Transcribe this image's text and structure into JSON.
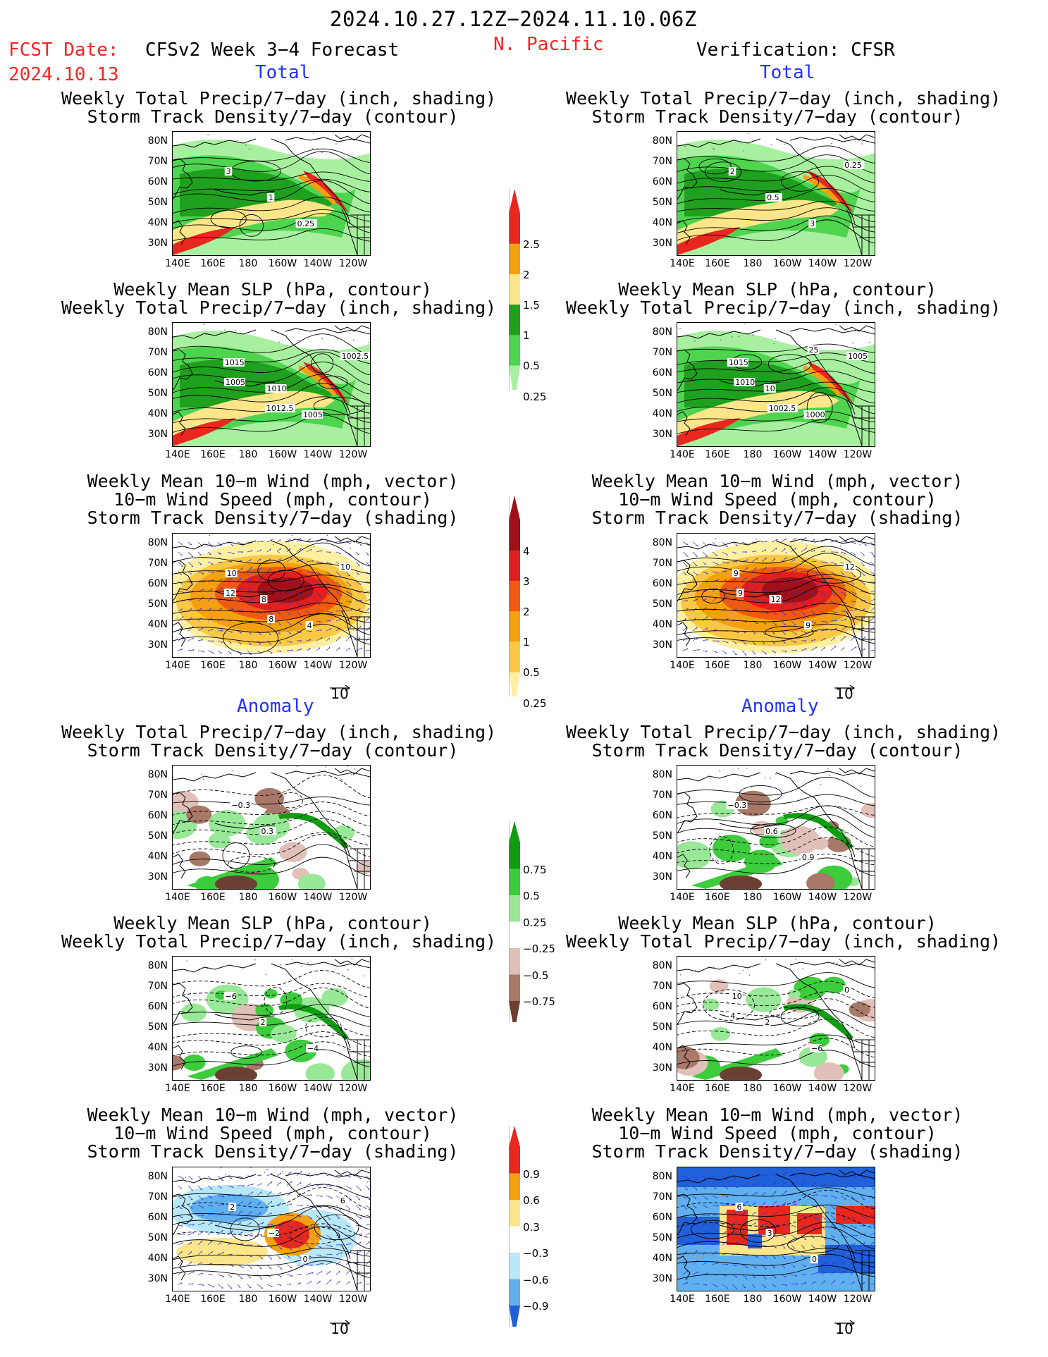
{
  "header": {
    "period": "2024.10.27.12Z−2024.11.10.06Z",
    "fcst_label": "FCST Date:",
    "fcst_date": "2024.10.13",
    "forecast_title": "CFSv2 Week 3−4 Forecast",
    "region": "N. Pacific",
    "verification": "Verification: CFSR"
  },
  "sections": {
    "total": "Total",
    "anomaly": "Anomaly"
  },
  "panel_titles": {
    "precip_storm": [
      "Weekly Total Precip/7−day (inch, shading)",
      "Storm Track Density/7−day (contour)"
    ],
    "slp_precip": [
      "Weekly Mean SLP (hPa, contour)",
      "Weekly Total Precip/7−day (inch, shading)"
    ],
    "wind": [
      "Weekly Mean 10−m Wind (mph, vector)",
      "10−m Wind Speed (mph, contour)",
      "Storm Track Density/7−day (shading)"
    ]
  },
  "axes": {
    "lat_labels": [
      "80N",
      "70N",
      "60N",
      "50N",
      "40N",
      "30N"
    ],
    "lon_labels": [
      "140E",
      "160E",
      "180",
      "160W",
      "140W",
      "120W"
    ]
  },
  "vector_ref": "10",
  "colorbars": {
    "precip_total": {
      "labels": [
        "2.5",
        "2",
        "1.5",
        "1",
        "0.5",
        "0.25"
      ],
      "colors": [
        "#e8281e",
        "#f5a010",
        "#fde68a",
        "#1fa01f",
        "#4fd44f",
        "#a8f0a0"
      ]
    },
    "storm_total": {
      "labels": [
        "4",
        "3",
        "2",
        "1",
        "0.5",
        "0.25"
      ],
      "colors": [
        "#a01018",
        "#e0201e",
        "#f05a10",
        "#f5a010",
        "#fbc846",
        "#fef0a0"
      ]
    },
    "precip_anom": {
      "labels": [
        "0.75",
        "0.5",
        "0.25",
        "−0.25",
        "−0.5",
        "−0.75"
      ],
      "colors": [
        "#109c10",
        "#3ccc3c",
        "#98e898",
        "#ffffff",
        "#e0c0b8",
        "#a87868",
        "#6b4033"
      ]
    },
    "wind_anom": {
      "labels": [
        "0.9",
        "0.6",
        "0.3",
        "−0.3",
        "−0.6",
        "−0.9"
      ],
      "colors": [
        "#e8281e",
        "#f5a010",
        "#fde68a",
        "#ffffff",
        "#b8e8f8",
        "#60b0f0",
        "#2060d8"
      ]
    }
  },
  "contour_labels": {
    "p1": [
      "3",
      "1",
      "0.25"
    ],
    "p2": [
      "2",
      "0.5",
      "3",
      "0.25"
    ],
    "p3": [
      "1015",
      "1010",
      "1005",
      "1002.5",
      "1005",
      "1012.5"
    ],
    "p4": [
      "1015",
      "10",
      "1000",
      "1005",
      "1010",
      "1002.5",
      "25"
    ],
    "p5": [
      "10",
      "8",
      "4",
      "10",
      "12",
      "8"
    ],
    "p6": [
      "9",
      "12",
      "9",
      "12",
      "9"
    ],
    "p7": [
      "−0.3",
      "0.3"
    ],
    "p8": [
      "−0.3",
      "0.6",
      "0.9"
    ],
    "p9": [
      "−6",
      "2",
      "−4"
    ],
    "p10": [
      "10",
      "2",
      "−6",
      "0",
      "4"
    ],
    "p11": [
      "2",
      "−2",
      "0",
      "6"
    ],
    "p12": [
      "6",
      "3",
      "0"
    ]
  }
}
